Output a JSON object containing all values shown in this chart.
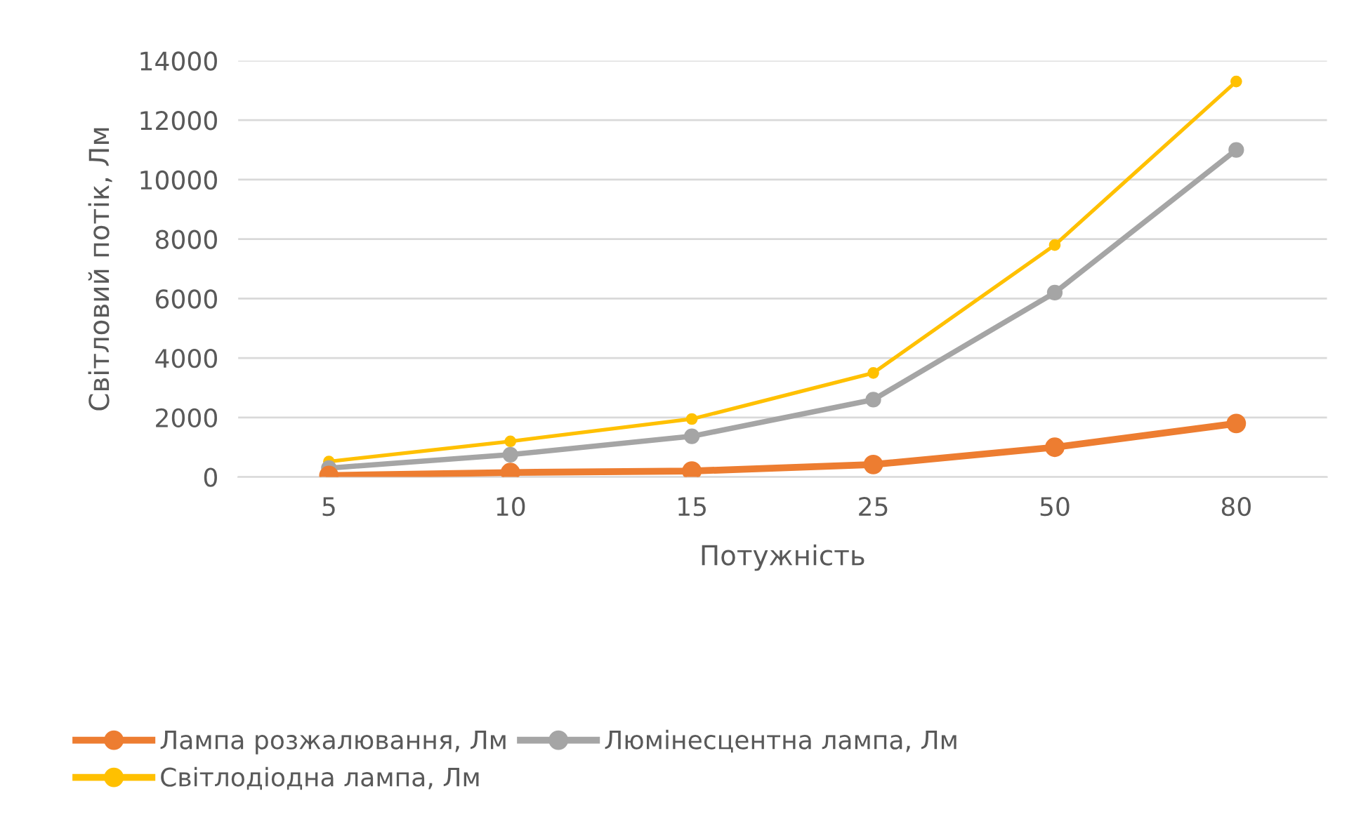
{
  "chart_data": {
    "type": "line",
    "xlabel": "Потужність",
    "ylabel": "Світловий потік, Лм",
    "categories": [
      "5",
      "10",
      "15",
      "25",
      "50",
      "80"
    ],
    "series": [
      {
        "name": "Лампа розжалювання, Лм",
        "color": "#ed7d31",
        "values": [
          50,
          150,
          200,
          420,
          1000,
          1800
        ]
      },
      {
        "name": "Люмінесцентна лампа, Лм",
        "color": "#a5a5a5",
        "values": [
          300,
          750,
          1370,
          2600,
          6200,
          11000
        ]
      },
      {
        "name": "Світлодіодна лампа, Лм",
        "color": "#ffc000",
        "values": [
          520,
          1200,
          1950,
          3500,
          7800,
          13300
        ]
      }
    ],
    "ylim": [
      0,
      14000
    ],
    "yticks": [
      0,
      2000,
      4000,
      6000,
      8000,
      10000,
      12000,
      14000
    ],
    "grid": "y",
    "legend": "bottom",
    "marker": "circle",
    "line_style": "solid"
  }
}
